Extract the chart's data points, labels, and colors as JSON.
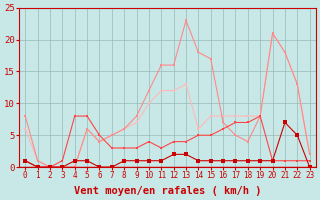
{
  "x": [
    0,
    1,
    2,
    3,
    4,
    5,
    6,
    7,
    8,
    9,
    10,
    11,
    12,
    13,
    14,
    15,
    16,
    17,
    18,
    19,
    20,
    21,
    22,
    23
  ],
  "series": [
    {
      "name": "line_lightest",
      "color": "#FFB8B8",
      "alpha": 1.0,
      "linewidth": 0.8,
      "markersize": 2.0,
      "y": [
        6,
        1,
        0,
        0,
        0,
        6,
        4,
        5,
        6,
        7,
        10,
        12,
        12,
        13,
        6,
        8,
        8,
        8,
        8,
        8,
        21,
        18,
        13,
        2
      ]
    },
    {
      "name": "line_light",
      "color": "#FF8888",
      "alpha": 1.0,
      "linewidth": 0.8,
      "markersize": 2.0,
      "y": [
        8,
        1,
        0,
        0,
        0,
        6,
        4,
        5,
        6,
        8,
        12,
        16,
        16,
        23,
        18,
        17,
        7,
        5,
        4,
        8,
        21,
        18,
        13,
        2
      ]
    },
    {
      "name": "line_medium",
      "color": "#FF4444",
      "alpha": 1.0,
      "linewidth": 0.8,
      "markersize": 2.0,
      "y": [
        1,
        0,
        0,
        1,
        8,
        8,
        5,
        3,
        3,
        3,
        4,
        3,
        4,
        4,
        5,
        5,
        6,
        7,
        7,
        8,
        1,
        1,
        1,
        1
      ]
    },
    {
      "name": "line_dark",
      "color": "#CC0000",
      "alpha": 1.0,
      "linewidth": 0.8,
      "markersize": 2.5,
      "y": [
        1,
        0,
        0,
        0,
        1,
        1,
        0,
        0,
        1,
        1,
        1,
        1,
        2,
        2,
        1,
        1,
        1,
        1,
        1,
        1,
        1,
        7,
        5,
        0
      ]
    }
  ],
  "xlabel": "Vent moyen/en rafales ( km/h )",
  "ylim": [
    0,
    25
  ],
  "xlim": [
    -0.5,
    23.5
  ],
  "yticks": [
    0,
    5,
    10,
    15,
    20,
    25
  ],
  "xticks": [
    0,
    1,
    2,
    3,
    4,
    5,
    6,
    7,
    8,
    9,
    10,
    11,
    12,
    13,
    14,
    15,
    16,
    17,
    18,
    19,
    20,
    21,
    22,
    23
  ],
  "bg_color": "#C8E8E8",
  "grid_color": "#9ABABA",
  "axis_color": "#CC0000",
  "tick_color": "#CC0000",
  "xlabel_fontsize": 7.5,
  "ytick_fontsize": 6.5,
  "xtick_fontsize": 5.5
}
